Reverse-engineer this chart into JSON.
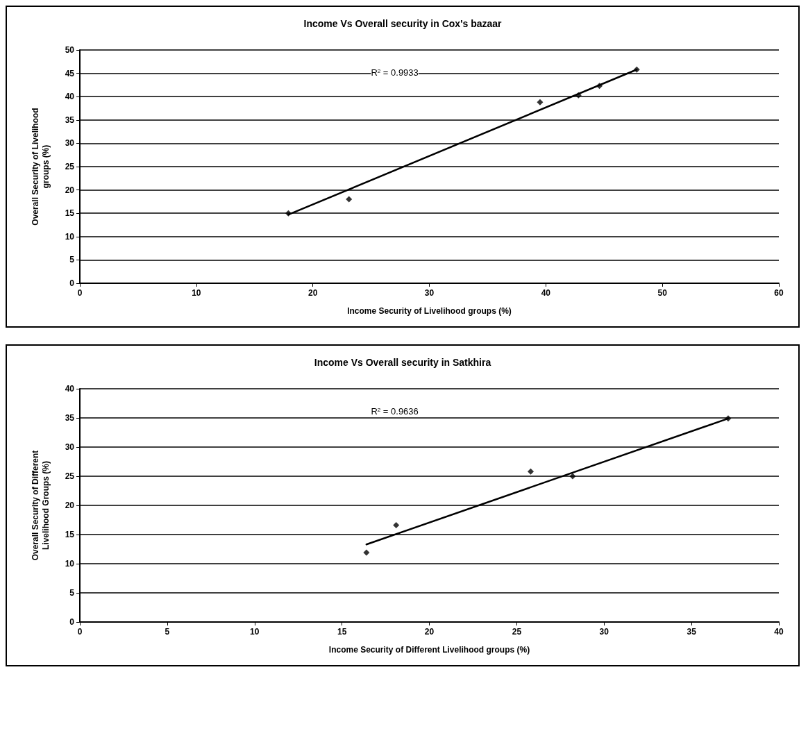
{
  "chart_data": [
    {
      "type": "scatter",
      "title": "Income Vs Overall security in Cox's bazaar",
      "xlabel": "Income Security of Livelihood groups (%)",
      "ylabel": "Overall Security of Livelihood\ngroups (%)",
      "xlim": [
        0,
        60
      ],
      "xticks": [
        0,
        10,
        20,
        30,
        40,
        50,
        60
      ],
      "ylim": [
        0,
        50
      ],
      "yticks": [
        0,
        5,
        10,
        15,
        20,
        25,
        30,
        35,
        40,
        45,
        50
      ],
      "grid": "y",
      "series": [
        {
          "color": "#000000",
          "marker": "diamond",
          "x": [
            17.9,
            23.1,
            39.5,
            42.8,
            44.6,
            47.8
          ],
          "values": [
            15,
            18,
            38.8,
            40.3,
            42.3,
            45.8
          ]
        },
        {
          "type": "line",
          "color": "#000000",
          "marker": "none",
          "x": [
            17.9,
            47.8
          ],
          "values": [
            14.7,
            45.8
          ]
        }
      ],
      "annotations": [
        "R$^{2}$ = 0.9933"
      ]
    },
    {
      "type": "scatter",
      "title": "Income Vs Overall security in Satkhira",
      "xlabel": "Income Security of Different Livelihood groups (%)",
      "ylabel": "Overall Security of Different\nLivelihood Groups (%)",
      "xlim": [
        0,
        40
      ],
      "xticks": [
        0,
        5,
        10,
        15,
        20,
        25,
        30,
        35,
        40
      ],
      "ylim": [
        0,
        40
      ],
      "yticks": [
        0,
        5,
        10,
        15,
        20,
        25,
        30,
        35,
        40
      ],
      "grid": "y",
      "series": [
        {
          "color": "#000000",
          "marker": "diamond",
          "x": [
            16.4,
            18.1,
            25.8,
            28.2,
            37.1
          ],
          "values": [
            11.9,
            16.6,
            25.8,
            25,
            34.9
          ]
        },
        {
          "type": "line",
          "color": "#000000",
          "marker": "none",
          "x": [
            16.4,
            37.1
          ],
          "values": [
            13.3,
            34.9
          ]
        }
      ],
      "annotations": [
        "R$^{2}$ = 0.9636"
      ]
    }
  ]
}
